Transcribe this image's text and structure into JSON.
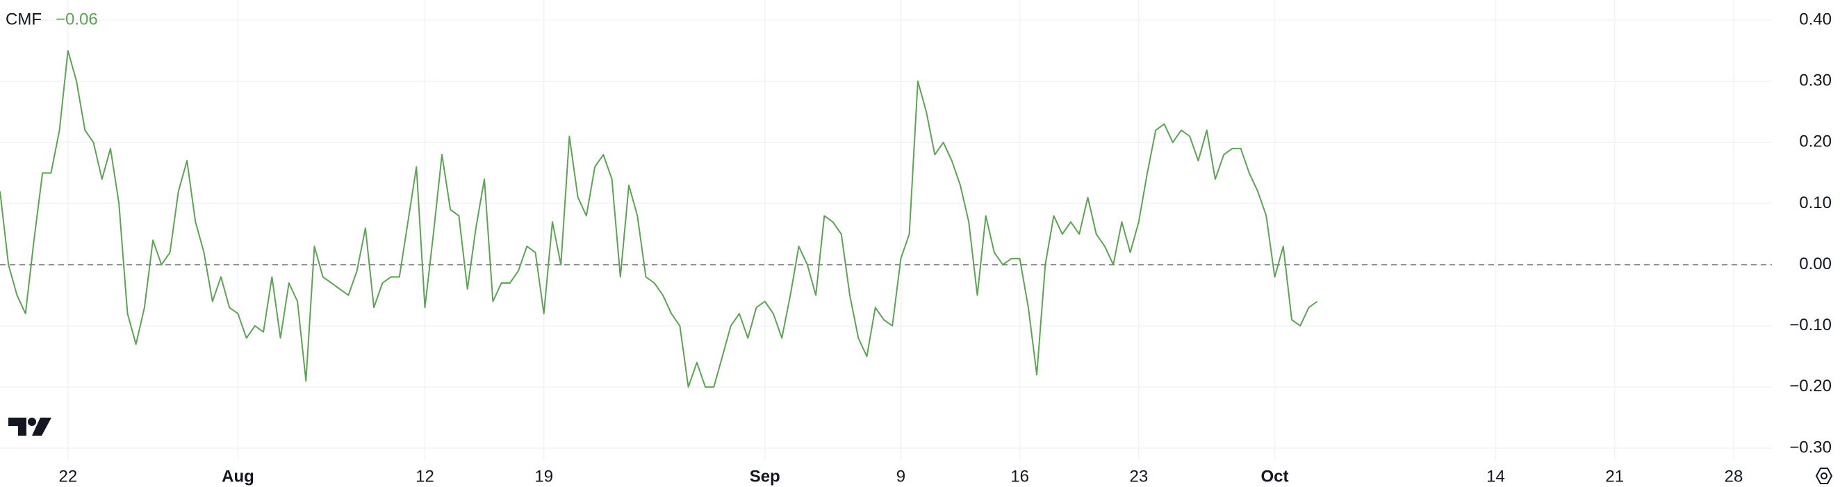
{
  "chart_data": {
    "type": "line",
    "series": [
      {
        "name": "CMF",
        "color": "#5ba452",
        "current_label": "−0.06",
        "values": [
          0.12,
          0.0,
          -0.05,
          -0.08,
          0.04,
          0.15,
          0.15,
          0.22,
          0.35,
          0.3,
          0.22,
          0.2,
          0.14,
          0.19,
          0.1,
          -0.08,
          -0.13,
          -0.07,
          0.04,
          0.0,
          0.02,
          0.12,
          0.17,
          0.07,
          0.02,
          -0.06,
          -0.02,
          -0.07,
          -0.08,
          -0.12,
          -0.1,
          -0.11,
          -0.02,
          -0.12,
          -0.03,
          -0.06,
          -0.19,
          0.03,
          -0.02,
          -0.03,
          -0.04,
          -0.05,
          -0.01,
          0.06,
          -0.07,
          -0.03,
          -0.02,
          -0.02,
          0.07,
          0.16,
          -0.07,
          0.05,
          0.18,
          0.09,
          0.08,
          -0.04,
          0.06,
          0.14,
          -0.06,
          -0.03,
          -0.03,
          -0.01,
          0.03,
          0.02,
          -0.08,
          0.07,
          0.0,
          0.21,
          0.11,
          0.08,
          0.16,
          0.18,
          0.14,
          -0.02,
          0.13,
          0.08,
          -0.02,
          -0.03,
          -0.05,
          -0.08,
          -0.1,
          -0.2,
          -0.16,
          -0.2,
          -0.2,
          -0.15,
          -0.1,
          -0.08,
          -0.12,
          -0.07,
          -0.06,
          -0.08,
          -0.12,
          -0.05,
          0.03,
          0.0,
          -0.05,
          0.08,
          0.07,
          0.05,
          -0.05,
          -0.12,
          -0.15,
          -0.07,
          -0.09,
          -0.1,
          0.01,
          0.05,
          0.3,
          0.25,
          0.18,
          0.2,
          0.17,
          0.13,
          0.07,
          -0.05,
          0.08,
          0.02,
          0.0,
          0.01,
          0.01,
          -0.07,
          -0.18,
          0.0,
          0.08,
          0.05,
          0.07,
          0.05,
          0.11,
          0.05,
          0.03,
          0.0,
          0.07,
          0.02,
          0.07,
          0.15,
          0.22,
          0.23,
          0.2,
          0.22,
          0.21,
          0.17,
          0.22,
          0.14,
          0.18,
          0.19,
          0.19,
          0.15,
          0.12,
          0.08,
          -0.02,
          0.03,
          -0.09,
          -0.1,
          -0.07,
          -0.06
        ]
      }
    ],
    "xlim": [
      0,
      208.5
    ],
    "xticks": [
      {
        "value": 8,
        "label": "22"
      },
      {
        "value": 28,
        "label": "Aug"
      },
      {
        "value": 50,
        "label": "12"
      },
      {
        "value": 64,
        "label": "19"
      },
      {
        "value": 90,
        "label": "Sep"
      },
      {
        "value": 106,
        "label": "9"
      },
      {
        "value": 120,
        "label": "16"
      },
      {
        "value": 134,
        "label": "23"
      },
      {
        "value": 150,
        "label": "Oct"
      },
      {
        "value": 176,
        "label": "14"
      },
      {
        "value": 190,
        "label": "21"
      },
      {
        "value": 204,
        "label": "28"
      }
    ],
    "ylim": [
      -0.3,
      0.4
    ],
    "yticks": [
      {
        "value": 0.4,
        "label": "0.40"
      },
      {
        "value": 0.3,
        "label": "0.30"
      },
      {
        "value": 0.2,
        "label": "0.20"
      },
      {
        "value": 0.1,
        "label": "0.10"
      },
      {
        "value": 0,
        "label": "0.00"
      },
      {
        "value": -0.1,
        "label": "−0.10"
      },
      {
        "value": -0.2,
        "label": "−0.20"
      },
      {
        "value": -0.3,
        "label": "−0.30"
      }
    ],
    "baseline": 0,
    "grid": true
  }
}
